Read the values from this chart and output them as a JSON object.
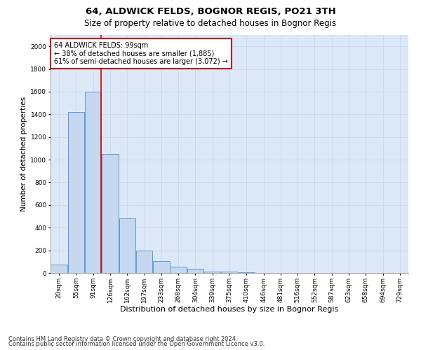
{
  "title": "64, ALDWICK FELDS, BOGNOR REGIS, PO21 3TH",
  "subtitle": "Size of property relative to detached houses in Bognor Regis",
  "xlabel": "Distribution of detached houses by size in Bognor Regis",
  "ylabel": "Number of detached properties",
  "categories": [
    "20sqm",
    "55sqm",
    "91sqm",
    "126sqm",
    "162sqm",
    "197sqm",
    "233sqm",
    "268sqm",
    "304sqm",
    "339sqm",
    "375sqm",
    "410sqm",
    "446sqm",
    "481sqm",
    "516sqm",
    "552sqm",
    "587sqm",
    "623sqm",
    "658sqm",
    "694sqm",
    "729sqm"
  ],
  "bar_values": [
    75,
    1420,
    1600,
    1050,
    480,
    200,
    105,
    55,
    35,
    15,
    10,
    5,
    3,
    2,
    2,
    1,
    1,
    1,
    0,
    0,
    0
  ],
  "bar_color": "#c5d8f0",
  "bar_edgecolor": "#5b9bd5",
  "bar_linewidth": 0.7,
  "vline_x": 2,
  "vline_color": "#cc0000",
  "vline_linewidth": 1.2,
  "annotation_text": "64 ALDWICK FELDS: 99sqm\n← 38% of detached houses are smaller (1,885)\n61% of semi-detached houses are larger (3,072) →",
  "annotation_box_edgecolor": "#cc0000",
  "annotation_box_facecolor": "#ffffff",
  "ylim": [
    0,
    2100
  ],
  "yticks": [
    0,
    200,
    400,
    600,
    800,
    1000,
    1200,
    1400,
    1600,
    1800,
    2000
  ],
  "grid_color": "#c8d8ec",
  "bg_color": "#dce8f8",
  "footnote1": "Contains HM Land Registry data © Crown copyright and database right 2024.",
  "footnote2": "Contains public sector information licensed under the Open Government Licence v3.0.",
  "title_fontsize": 9.5,
  "subtitle_fontsize": 8.5,
  "xlabel_fontsize": 8,
  "ylabel_fontsize": 7.5,
  "tick_fontsize": 6.5,
  "annotation_fontsize": 7,
  "footnote_fontsize": 6
}
